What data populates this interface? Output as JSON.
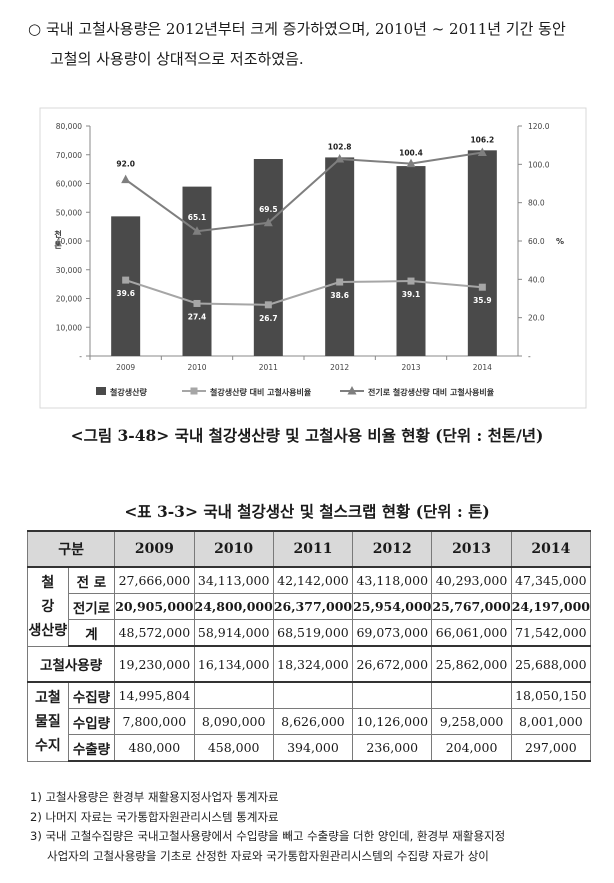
{
  "intro": {
    "bullet": "○",
    "line1": "국내 고철사용량은 2012년부터 크게 증가하였으며, 2010년 ~ 2011년 기간 동안",
    "line2": "고철의 사용량이 상대적으로 저조하였음."
  },
  "chart_data": {
    "type": "bar",
    "categories": [
      "2009",
      "2010",
      "2011",
      "2012",
      "2013",
      "2014"
    ],
    "ylabel": "천톤",
    "y2label": "%",
    "ylim": [
      0,
      80000
    ],
    "y2lim": [
      0,
      120
    ],
    "y_ticks": [
      "-",
      "10,000",
      "20,000",
      "30,000",
      "40,000",
      "50,000",
      "60,000",
      "70,000",
      "80,000"
    ],
    "y2_ticks": [
      "-",
      "20.0",
      "40.0",
      "60.0",
      "80.0",
      "100.0",
      "120.0"
    ],
    "legend_position": "bottom",
    "colors": {
      "bar": "#4a4a4a",
      "line_steel": "#a6a6a6",
      "line_elec": "#7f7f7f"
    },
    "series": [
      {
        "name": "철강생산량",
        "kind": "bar",
        "axis": "left",
        "values": [
          48572,
          58914,
          68519,
          69073,
          66061,
          71542
        ]
      },
      {
        "name": "철강생산량 대비 고철사용비율",
        "kind": "line",
        "axis": "right",
        "marker": "square",
        "values": [
          39.6,
          27.4,
          26.7,
          38.6,
          39.1,
          35.9
        ],
        "labels": [
          "39.6",
          "27.4",
          "26.7",
          "38.6",
          "39.1",
          "35.9"
        ]
      },
      {
        "name": "전기로 철강생산량 대비 고철사용비율",
        "kind": "line",
        "axis": "right",
        "marker": "triangle",
        "values": [
          92.0,
          65.1,
          69.5,
          102.8,
          100.4,
          106.2
        ],
        "labels": [
          "92.0",
          "65.1",
          "69.5",
          "102.8",
          "100.4",
          "106.2"
        ]
      }
    ]
  },
  "figure_caption": "<그림 3-48> 국내 철강생산량 및 고철사용 비율 현황 (단위 : 천톤/년)",
  "table_caption": "<표 3-3> 국내 철강생산 및 철스크랩 현황 (단위 : 톤)",
  "table": {
    "header": {
      "col0": "구분",
      "years": [
        "2009",
        "2010",
        "2011",
        "2012",
        "2013",
        "2014"
      ]
    },
    "steel_group": "철 강 생산량",
    "steel_rows": [
      {
        "label": "전 로",
        "values": [
          "27,666,000",
          "34,113,000",
          "42,142,000",
          "43,118,000",
          "40,293,000",
          "47,345,000"
        ]
      },
      {
        "label": "전기로",
        "values": [
          "20,905,000",
          "24,800,000",
          "26,377,000",
          "25,954,000",
          "25,767,000",
          "24,197,000"
        ]
      },
      {
        "label": "계",
        "values": [
          "48,572,000",
          "58,914,000",
          "68,519,000",
          "69,073,000",
          "66,061,000",
          "71,542,000"
        ]
      }
    ],
    "scrap_use": {
      "label": "고철사용량",
      "values": [
        "19,230,000",
        "16,134,000",
        "18,324,000",
        "26,672,000",
        "25,862,000",
        "25,688,000"
      ]
    },
    "scrap_group": "고철 물질 수지",
    "scrap_rows": [
      {
        "label": "수집량",
        "values": [
          "14,995,804",
          "",
          "",
          "",
          "",
          "18,050,150"
        ]
      },
      {
        "label": "수입량",
        "values": [
          "7,800,000",
          "8,090,000",
          "8,626,000",
          "10,126,000",
          "9,258,000",
          "8,001,000"
        ]
      },
      {
        "label": "수출량",
        "values": [
          "480,000",
          "458,000",
          "394,000",
          "236,000",
          "204,000",
          "297,000"
        ]
      }
    ]
  },
  "notes": [
    "1) 고철사용량은 환경부 재활용지정사업자 통계자료",
    "2) 나머지 자료는 국가통합자원관리시스템 통계자료",
    "3) 국내 고철수집량은 국내고철사용량에서 수입량을 빼고 수출량을 더한 양인데, 환경부 재활용지정",
    "사업자의 고철사용량을 기초로 산정한 자료와 국가통합자원관리시스템의 수집량 자료가 상이"
  ]
}
